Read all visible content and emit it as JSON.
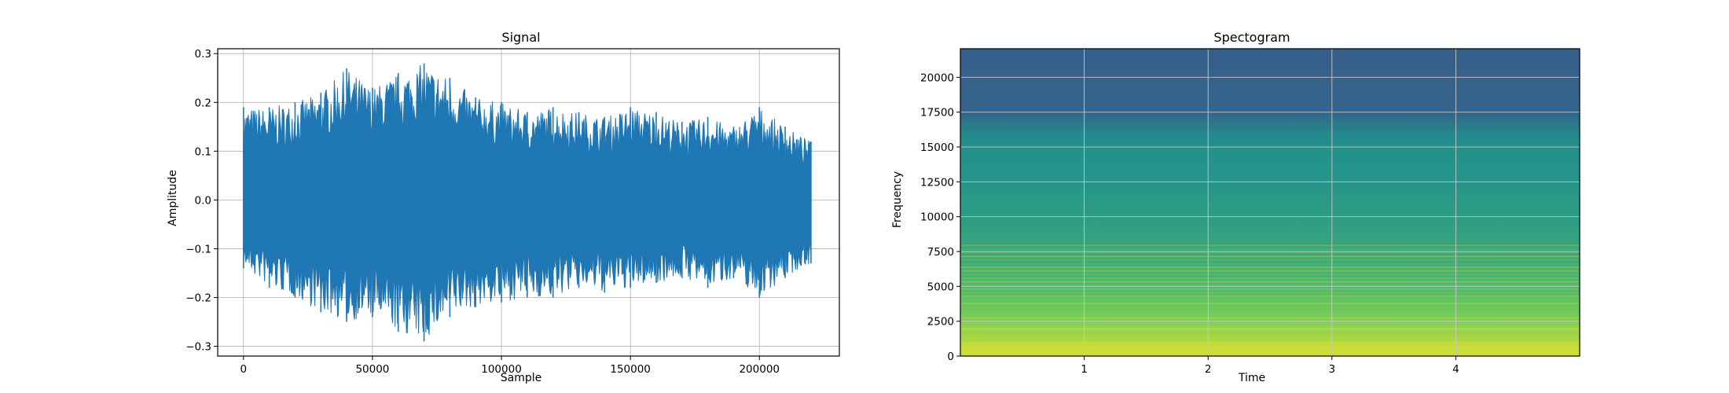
{
  "chart_data": [
    {
      "type": "line",
      "title": "Signal",
      "xlabel": "Sample",
      "ylabel": "Amplitude",
      "xlim": [
        -10000,
        231000
      ],
      "ylim": [
        -0.32,
        0.31
      ],
      "xticks": [
        0,
        50000,
        100000,
        150000,
        200000
      ],
      "yticks": [
        -0.3,
        -0.2,
        -0.1,
        0.0,
        0.1,
        0.2,
        0.3
      ],
      "xtick_labels": [
        "0",
        "50000",
        "100000",
        "150000",
        "200000"
      ],
      "ytick_labels": [
        "−0.3",
        "−0.2",
        "−0.1",
        "0.0",
        "0.1",
        "0.2",
        "0.3"
      ],
      "grid": true,
      "color": "#1f77b4",
      "series": [
        {
          "x": [
            0,
            10000,
            20000,
            30000,
            40000,
            50000,
            60000,
            70000,
            80000,
            90000,
            100000,
            110000,
            120000,
            130000,
            140000,
            150000,
            160000,
            170000,
            180000,
            190000,
            200000,
            210000,
            220000
          ],
          "upper": [
            0.19,
            0.19,
            0.2,
            0.22,
            0.27,
            0.23,
            0.26,
            0.28,
            0.25,
            0.21,
            0.2,
            0.18,
            0.19,
            0.18,
            0.17,
            0.19,
            0.18,
            0.16,
            0.17,
            0.15,
            0.19,
            0.15,
            0.12
          ],
          "lower": [
            -0.14,
            -0.18,
            -0.2,
            -0.23,
            -0.25,
            -0.24,
            -0.27,
            -0.29,
            -0.24,
            -0.22,
            -0.21,
            -0.2,
            -0.2,
            -0.18,
            -0.19,
            -0.18,
            -0.17,
            -0.16,
            -0.18,
            -0.16,
            -0.2,
            -0.16,
            -0.13
          ]
        }
      ]
    },
    {
      "type": "heatmap",
      "title": "Spectogram",
      "xlabel": "Time",
      "ylabel": "Frequency",
      "xlim": [
        0,
        5.0
      ],
      "ylim": [
        0,
        22050
      ],
      "xticks": [
        1,
        2,
        3,
        4
      ],
      "yticks": [
        0,
        2500,
        5000,
        7500,
        10000,
        12500,
        15000,
        17500,
        20000
      ],
      "xtick_labels": [
        "1",
        "2",
        "3",
        "4"
      ],
      "ytick_labels": [
        "0",
        "2500",
        "5000",
        "7500",
        "10000",
        "12500",
        "15000",
        "17500",
        "20000"
      ],
      "grid": true,
      "colormap": [
        "#440154",
        "#3b528b",
        "#21918c",
        "#5ec962",
        "#fde725"
      ],
      "frequency_profile": [
        {
          "f": 0,
          "level": 0.95
        },
        {
          "f": 2500,
          "level": 0.8
        },
        {
          "f": 5000,
          "level": 0.68
        },
        {
          "f": 7500,
          "level": 0.6
        },
        {
          "f": 10000,
          "level": 0.55
        },
        {
          "f": 12500,
          "level": 0.52
        },
        {
          "f": 15000,
          "level": 0.5
        },
        {
          "f": 16000,
          "level": 0.46
        },
        {
          "f": 17500,
          "level": 0.32
        },
        {
          "f": 22050,
          "level": 0.3
        }
      ]
    }
  ]
}
